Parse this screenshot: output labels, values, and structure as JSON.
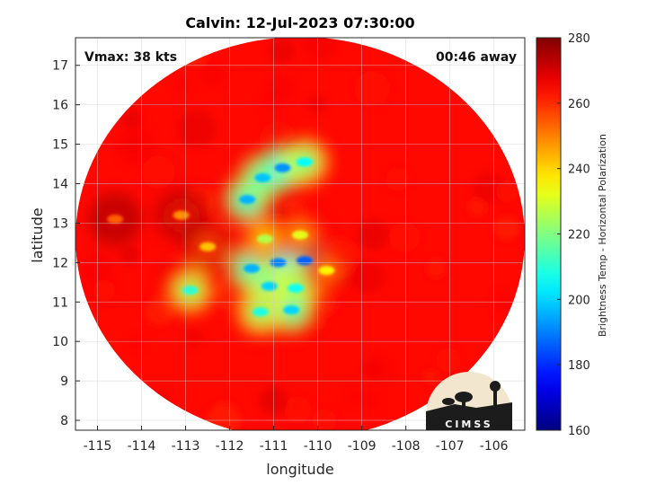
{
  "chart_data": {
    "type": "heatmap",
    "title": "Calvin: 12-Jul-2023 07:30:00",
    "xlabel": "longitude",
    "ylabel": "latitude",
    "xlim": [
      -115.5,
      -105.3
    ],
    "ylim": [
      7.75,
      17.7
    ],
    "xticks": [
      "-115",
      "-114",
      "-113",
      "-112",
      "-111",
      "-110",
      "-109",
      "-108",
      "-107",
      "-106"
    ],
    "yticks": [
      "8",
      "9",
      "10",
      "11",
      "12",
      "13",
      "14",
      "15",
      "16",
      "17"
    ],
    "grid": true,
    "annotations": {
      "vmax": "Vmax: 38 kts",
      "time_away": "00:46 away"
    },
    "colorbar": {
      "label": "Brightness Temp - Horizontal Polarization",
      "min": 160,
      "max": 280,
      "ticks": [
        "280",
        "260",
        "240",
        "220",
        "200",
        "180",
        "160"
      ],
      "colormap": "jet"
    },
    "swath": {
      "center": [
        -110.6,
        12.75
      ],
      "radius_deg": 5.1,
      "background_value": 264
    },
    "features": [
      {
        "lon": -110.3,
        "lat": 12.05,
        "value": 186
      },
      {
        "lon": -110.9,
        "lat": 12.0,
        "value": 190
      },
      {
        "lon": -111.5,
        "lat": 11.85,
        "value": 196
      },
      {
        "lon": -111.1,
        "lat": 11.4,
        "value": 200
      },
      {
        "lon": -110.5,
        "lat": 11.35,
        "value": 206
      },
      {
        "lon": -110.6,
        "lat": 10.8,
        "value": 200
      },
      {
        "lon": -111.3,
        "lat": 10.75,
        "value": 208
      },
      {
        "lon": -111.6,
        "lat": 13.6,
        "value": 196
      },
      {
        "lon": -111.25,
        "lat": 14.15,
        "value": 198
      },
      {
        "lon": -110.8,
        "lat": 14.4,
        "value": 192
      },
      {
        "lon": -110.3,
        "lat": 14.55,
        "value": 205
      },
      {
        "lon": -112.9,
        "lat": 11.3,
        "value": 210
      },
      {
        "lon": -111.2,
        "lat": 12.6,
        "value": 226
      },
      {
        "lon": -110.4,
        "lat": 12.7,
        "value": 232
      },
      {
        "lon": -112.5,
        "lat": 12.4,
        "value": 242
      },
      {
        "lon": -113.1,
        "lat": 13.2,
        "value": 248
      },
      {
        "lon": -114.6,
        "lat": 13.1,
        "value": 254
      },
      {
        "lon": -109.8,
        "lat": 11.8,
        "value": 236
      }
    ],
    "logo_text": "CIMSS"
  }
}
